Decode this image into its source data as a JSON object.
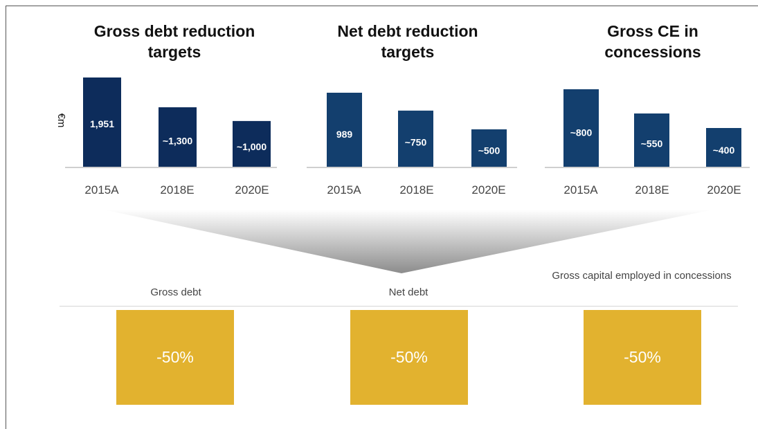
{
  "chart_data": [
    {
      "type": "bar",
      "title": "Gross debt reduction targets",
      "ylabel": "€m",
      "categories": [
        "2015A",
        "2018E",
        "2020E"
      ],
      "values": [
        1951,
        1300,
        1000
      ],
      "value_labels": [
        "1,951",
        "~1,300",
        "~1,000"
      ],
      "color": "#0d2c5b"
    },
    {
      "type": "bar",
      "title": "Net debt reduction targets",
      "categories": [
        "2015A",
        "2018E",
        "2020E"
      ],
      "values": [
        989,
        750,
        500
      ],
      "value_labels": [
        "989",
        "~750",
        "~500"
      ],
      "color": "#133f6e"
    },
    {
      "type": "bar",
      "title": "Gross CE in concessions",
      "categories": [
        "2015A",
        "2018E",
        "2020E"
      ],
      "values": [
        800,
        550,
        400
      ],
      "value_labels": [
        "~800",
        "~550",
        "~400"
      ],
      "color": "#133f6e"
    }
  ],
  "summary": [
    {
      "label": "Gross debt",
      "value": "-50%"
    },
    {
      "label": "Net debt",
      "value": "-50%"
    },
    {
      "label": "Gross capital employed in concessions",
      "value": "-50%"
    }
  ],
  "colors": {
    "bar_dark": "#0d2c5b",
    "bar": "#133f6e",
    "summary_box": "#e2b22f",
    "tick_text": "#444444"
  }
}
